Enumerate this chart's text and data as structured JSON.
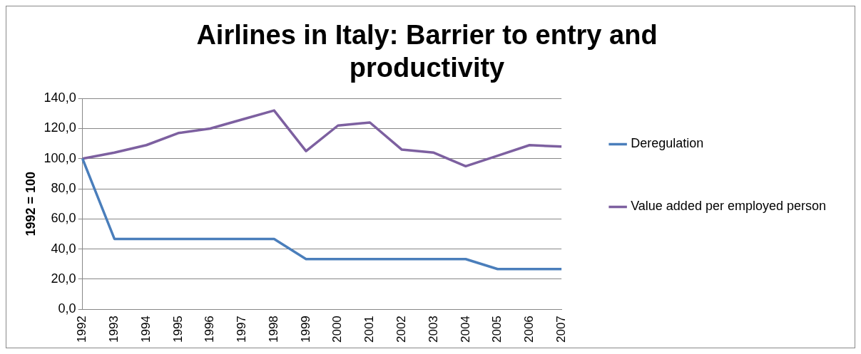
{
  "chart_data": {
    "type": "line",
    "title": "Airlines in Italy: Barrier to entry and productivity",
    "ylabel": "1992 = 100",
    "categories": [
      "1992",
      "1993",
      "1994",
      "1995",
      "1996",
      "1997",
      "1998",
      "1999",
      "2000",
      "2001",
      "2002",
      "2003",
      "2004",
      "2005",
      "2006",
      "2007"
    ],
    "series": [
      {
        "name": "Deregulation",
        "color": "#4a7ebb",
        "values": [
          100,
          46.7,
          46.7,
          46.7,
          46.7,
          46.7,
          46.7,
          33.3,
          33.3,
          33.3,
          33.3,
          33.3,
          33.3,
          26.7,
          26.7,
          26.7
        ]
      },
      {
        "name": "Value added per employed person",
        "color": "#7d60a0",
        "values": [
          100,
          104,
          109,
          117,
          120,
          126,
          132,
          105,
          122,
          124,
          106,
          104,
          95,
          102,
          109,
          108
        ]
      }
    ],
    "ylim": [
      0,
      140
    ],
    "yticks": [
      {
        "value": 0,
        "label": "0,0"
      },
      {
        "value": 20,
        "label": "20,0"
      },
      {
        "value": 40,
        "label": "40,0"
      },
      {
        "value": 60,
        "label": "60,0"
      },
      {
        "value": 80,
        "label": "80,0"
      },
      {
        "value": 100,
        "label": "100,0"
      },
      {
        "value": 120,
        "label": "120,0"
      },
      {
        "value": 140,
        "label": "140,0"
      }
    ],
    "grid": "y",
    "legend": "right",
    "marker": "none",
    "line_style": "solid"
  }
}
